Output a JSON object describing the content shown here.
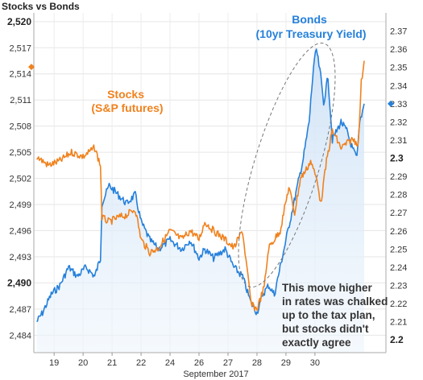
{
  "chart_data": {
    "type": "line",
    "title": "Stocks vs Bonds",
    "xlabel": "September 2017",
    "x_ticks": [
      "19",
      "20",
      "21",
      "22",
      "24",
      "26",
      "27",
      "28",
      "29",
      "30"
    ],
    "left_axis": {
      "ylim": [
        2482,
        2521
      ],
      "ticks": [
        "2,484",
        "2,487",
        "2,490",
        "2,493",
        "2,496",
        "2,499",
        "2,502",
        "2,505",
        "2,508",
        "2,511",
        "2,514",
        "2,517",
        "2,520"
      ],
      "tick_values": [
        2484,
        2487,
        2490,
        2493,
        2496,
        2499,
        2502,
        2505,
        2508,
        2511,
        2514,
        2517,
        2520
      ],
      "bold_ticks": [
        "2,490",
        "2,520"
      ]
    },
    "right_axis": {
      "ylim": [
        2.193,
        2.38
      ],
      "ticks": [
        "2.2",
        "2.21",
        "2.22",
        "2.23",
        "2.24",
        "2.25",
        "2.26",
        "2.27",
        "2.28",
        "2.29",
        "2.3",
        "2.31",
        "2.32",
        "2.33",
        "2.34",
        "2.35",
        "2.36",
        "2.37"
      ],
      "tick_values": [
        2.2,
        2.21,
        2.22,
        2.23,
        2.24,
        2.25,
        2.26,
        2.27,
        2.28,
        2.29,
        2.3,
        2.31,
        2.32,
        2.33,
        2.34,
        2.35,
        2.36,
        2.37
      ],
      "bold_ticks": [
        "2.2",
        "2.3"
      ]
    },
    "current_markers": {
      "stocks": 2514.8,
      "bonds": 2.33
    },
    "series": [
      {
        "name": "Stocks (S&P futures)",
        "color": "#f0821e",
        "axis": "left",
        "x": [
          18.4,
          18.8,
          19.2,
          19.6,
          20.0,
          20.4,
          20.6,
          20.65,
          20.9,
          21.2,
          21.5,
          21.8,
          22.0,
          22.3,
          22.6,
          23.0,
          23.4,
          23.7,
          24.0,
          24.2,
          24.5,
          24.9,
          25.2,
          25.5,
          25.8,
          26.0,
          26.25,
          26.4,
          26.6,
          26.8,
          27.1,
          27.3,
          27.5,
          27.7,
          27.85,
          28.0,
          28.1,
          28.2,
          28.4,
          28.6,
          28.9,
          29.1,
          29.3,
          29.5,
          29.6,
          29.7
        ],
        "values": [
          2504.5,
          2503.5,
          2504.0,
          2505.0,
          2504.5,
          2505.5,
          2503.5,
          2497.5,
          2497.0,
          2497.5,
          2497.8,
          2498.5,
          2495.0,
          2493.5,
          2494.0,
          2496.0,
          2495.0,
          2496.0,
          2495.0,
          2497.0,
          2496.0,
          2495.0,
          2494.0,
          2496.0,
          2487.5,
          2487.0,
          2489.5,
          2494.0,
          2495.0,
          2496.0,
          2501.0,
          2498.0,
          2502.0,
          2503.0,
          2504.0,
          2502.5,
          2501.5,
          2499.0,
          2504.0,
          2507.5,
          2505.5,
          2506.0,
          2506.5,
          2506.0,
          2513.0,
          2515.5
        ]
      },
      {
        "name": "Bonds (10yr Treasury Yield)",
        "color": "#2580db",
        "axis": "right",
        "x": [
          18.4,
          18.6,
          18.9,
          19.2,
          19.5,
          19.8,
          20.1,
          20.4,
          20.6,
          20.65,
          20.9,
          21.2,
          21.5,
          21.8,
          22.0,
          22.3,
          22.6,
          23.0,
          23.4,
          23.7,
          24.0,
          24.2,
          24.5,
          24.9,
          25.2,
          25.5,
          25.8,
          26.0,
          26.2,
          26.4,
          26.6,
          26.8,
          27.0,
          27.2,
          27.4,
          27.6,
          27.8,
          27.95,
          28.05,
          28.2,
          28.3,
          28.45,
          28.6,
          28.9,
          29.1,
          29.3,
          29.45,
          29.55,
          29.7
        ],
        "values": [
          2.21,
          2.215,
          2.225,
          2.23,
          2.24,
          2.235,
          2.24,
          2.235,
          2.245,
          2.275,
          2.285,
          2.28,
          2.275,
          2.28,
          2.265,
          2.255,
          2.25,
          2.255,
          2.25,
          2.255,
          2.245,
          2.25,
          2.245,
          2.25,
          2.24,
          2.235,
          2.22,
          2.215,
          2.225,
          2.23,
          2.225,
          2.24,
          2.255,
          2.27,
          2.285,
          2.3,
          2.32,
          2.35,
          2.36,
          2.345,
          2.33,
          2.345,
          2.31,
          2.32,
          2.315,
          2.305,
          2.3,
          2.32,
          2.33
        ]
      }
    ],
    "annotations": {
      "stocks_label": [
        "Stocks",
        "(S&P futures)"
      ],
      "bonds_label": [
        "Bonds",
        "(10yr Treasury Yield)"
      ],
      "note": [
        "This move higher",
        "in rates was chalked",
        "up to the tax plan,",
        "but stocks didn't",
        "exactly agree"
      ]
    },
    "grid": true,
    "legend": "none"
  }
}
